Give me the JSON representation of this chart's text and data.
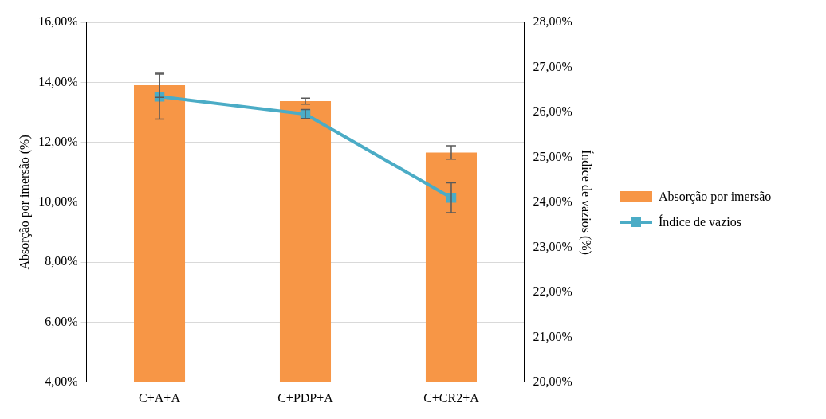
{
  "chart_data": {
    "type": "bar",
    "categories": [
      "C+A+A",
      "C+PDP+A",
      "C+CR2+A"
    ],
    "series": [
      {
        "name": "Absorção por imersão",
        "color": "#f79646",
        "values": [
          13.9,
          13.37,
          11.66
        ],
        "errors": [
          0.4,
          0.1,
          0.22
        ]
      },
      {
        "name": "Índice de vazios",
        "type": "line",
        "axis": "y2",
        "color": "#4bacc6",
        "marker": "square",
        "values": [
          26.35,
          25.96,
          24.1
        ],
        "errors": [
          0.5,
          0.1,
          0.33
        ]
      }
    ],
    "ylabel": "Absorção por imersão (%)",
    "y2label": "Índice de vazios (%)",
    "ylim": [
      4,
      16
    ],
    "yticks": [
      {
        "value": 4,
        "label": "4,00%"
      },
      {
        "value": 6,
        "label": "6,00%"
      },
      {
        "value": 8,
        "label": "8,00%"
      },
      {
        "value": 10,
        "label": "10,00%"
      },
      {
        "value": 12,
        "label": "12,00%"
      },
      {
        "value": 14,
        "label": "14,00%"
      },
      {
        "value": 16,
        "label": "16,00%"
      }
    ],
    "y2lim": [
      20,
      28
    ],
    "y2ticks": [
      {
        "value": 20,
        "label": "20,00%"
      },
      {
        "value": 21,
        "label": "21,00%"
      },
      {
        "value": 22,
        "label": "22,00%"
      },
      {
        "value": 23,
        "label": "23,00%"
      },
      {
        "value": 24,
        "label": "24,00%"
      },
      {
        "value": 25,
        "label": "25,00%"
      },
      {
        "value": 26,
        "label": "26,00%"
      },
      {
        "value": 27,
        "label": "27,00%"
      },
      {
        "value": 28,
        "label": "28,00%"
      }
    ],
    "grid": "y",
    "legend": "right"
  }
}
